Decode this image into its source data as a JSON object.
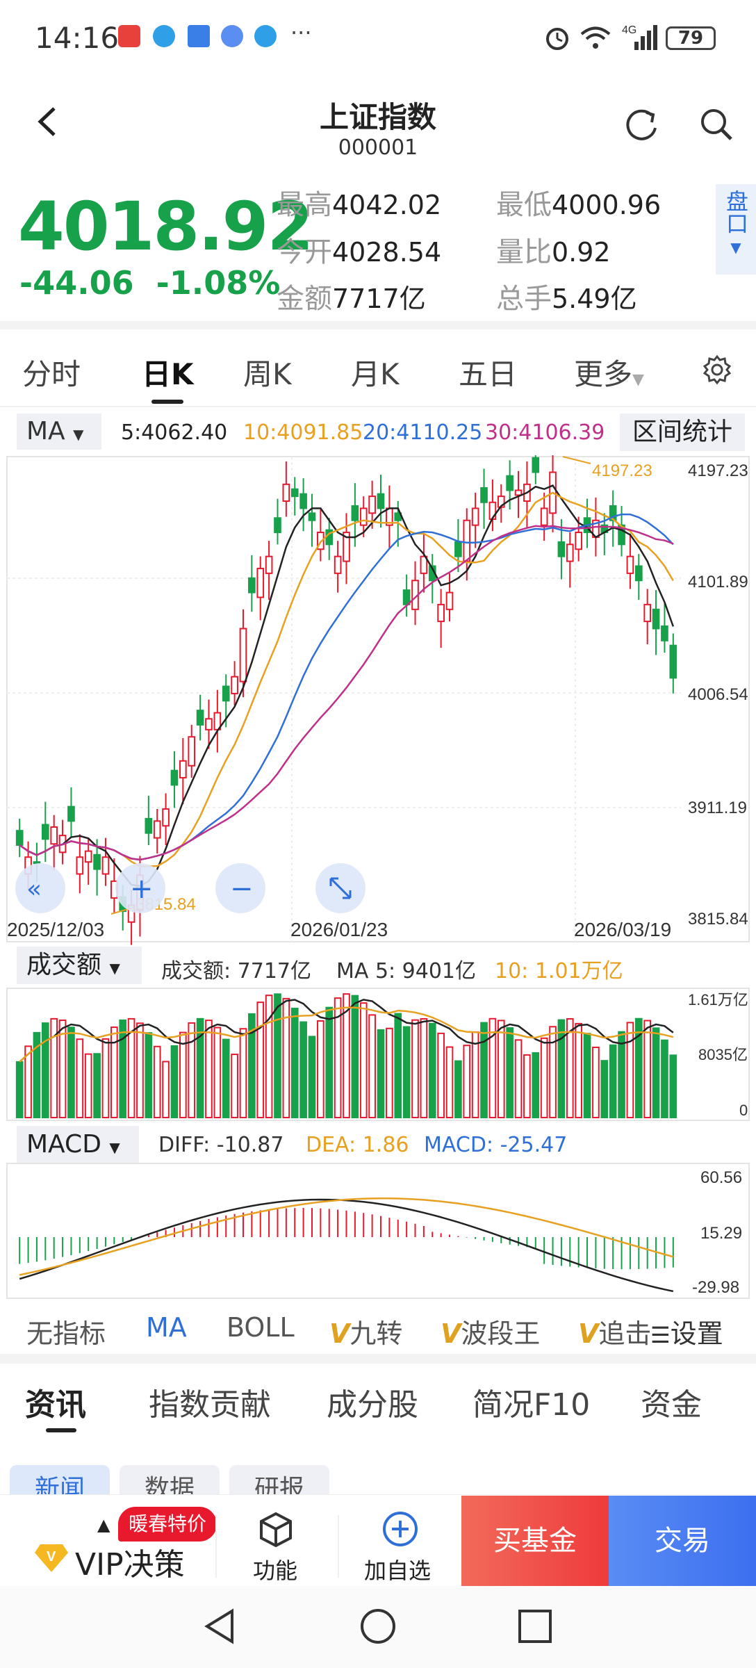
{
  "status_bar": {
    "time": "14:16",
    "battery": "79"
  },
  "header": {
    "title": "上证指数",
    "code": "000001"
  },
  "quote": {
    "price": "4018.92",
    "change": "-44.06",
    "change_pct": "-1.08%",
    "stats": [
      {
        "label": "最高",
        "value": "4042.02"
      },
      {
        "label": "最低",
        "value": "4000.96"
      },
      {
        "label": "今开",
        "value": "4028.54"
      },
      {
        "label": "量比",
        "value": "0.92"
      },
      {
        "label": "金额",
        "value": "7717亿"
      },
      {
        "label": "总手",
        "value": "5.49亿"
      }
    ],
    "pankou": "盘口"
  },
  "kline_tabs": [
    "分时",
    "日K",
    "周K",
    "月K",
    "五日",
    "更多"
  ],
  "ma_row": {
    "select": "MA",
    "ma5": "5:4062.40",
    "ma10": "10:4091.85",
    "ma20": "20:4110.25",
    "ma30": "30:4106.39",
    "range_stats": "区间统计"
  },
  "kline": {
    "y_labels": [
      "4197.23",
      "4101.89",
      "4006.54",
      "3911.19",
      "3815.84"
    ],
    "x_labels": [
      "2025/12/03",
      "2026/01/23",
      "2026/03/19"
    ],
    "high_mark": "4197.23",
    "low_mark": "3815.84"
  },
  "volume": {
    "select": "成交额",
    "amount": "成交额: 7717亿",
    "ma5": "MA 5: 9401亿",
    "ma10": "10: 1.01万亿",
    "y_labels": [
      "1.61万亿",
      "8035亿",
      "0"
    ]
  },
  "macd": {
    "select": "MACD",
    "diff": "DIFF: -10.87",
    "dea": "DEA: 1.86",
    "macd": "MACD: -25.47",
    "y_labels": [
      "60.56",
      "15.29",
      "-29.98"
    ]
  },
  "indicator_tabs": [
    "无指标",
    "MA",
    "BOLL",
    "九转",
    "波段王",
    "追击",
    "设置"
  ],
  "news_tabs": [
    "资讯",
    "指数贡献",
    "成分股",
    "简况F10",
    "资金"
  ],
  "news_chips": [
    "新闻",
    "数据",
    "研报"
  ],
  "bottom": {
    "vip_badge": "暖春特价",
    "vip_label": "VIP决策",
    "function": "功能",
    "add_watch": "加自选",
    "buy_fund": "买基金",
    "trade": "交易"
  },
  "colors": {
    "up": "#e8182d",
    "down": "#17a14a",
    "accent": "#2f6fd8",
    "ma5": "#222222",
    "ma10": "#e8a020",
    "ma20": "#2f6fd8",
    "ma30": "#c0308a"
  },
  "chart_data": {
    "type": "candlestick",
    "range": [
      "2025/12/03",
      "2026/03/19"
    ],
    "ylim": [
      3815.84,
      4197.23
    ],
    "candles_close": [
      3880,
      3870,
      3865,
      3885,
      3895,
      3888,
      3900,
      3870,
      3875,
      3860,
      3870,
      3850,
      3825,
      3830,
      3855,
      3890,
      3900,
      3910,
      3930,
      3950,
      3970,
      3980,
      3985,
      3990,
      4000,
      4020,
      4060,
      4090,
      4110,
      4120,
      4140,
      4180,
      4170,
      4160,
      4150,
      4140,
      4130,
      4120,
      4140,
      4150,
      4160,
      4170,
      4160,
      4160,
      4150,
      4080,
      4100,
      4120,
      4100,
      4080,
      4090,
      4120,
      4150,
      4160,
      4165,
      4165,
      4170,
      4175,
      4175,
      4180,
      4190,
      4160,
      4190,
      4120,
      4130,
      4140,
      4140,
      4150,
      4140,
      4150,
      4130,
      4120,
      4100,
      4080,
      4060,
      4050,
      4019
    ],
    "ma5_end": 4062.4,
    "ma10_end": 4091.85,
    "ma20_end": 4110.25,
    "ma30_end": 4106.39,
    "volume_last": "7717亿",
    "macd_last": {
      "diff": -10.87,
      "dea": 1.86,
      "macd": -25.47
    }
  }
}
